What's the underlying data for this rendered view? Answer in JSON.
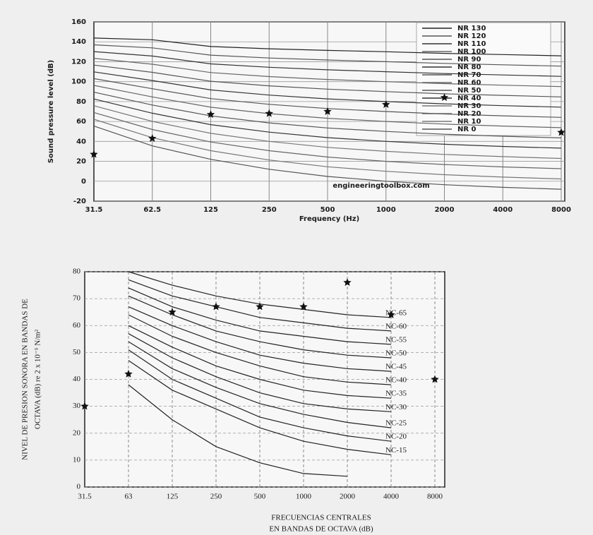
{
  "chart_data": [
    {
      "type": "line",
      "y_label": "Sound pressure level (dB)",
      "x_label": "Frequency (Hz)",
      "annotation": "engineeringtoolbox.com",
      "categories": [
        "31.5",
        "62.5",
        "125",
        "250",
        "500",
        "1000",
        "2000",
        "4000",
        "8000"
      ],
      "ylim": [
        -20,
        160
      ],
      "yticks": [
        -20,
        0,
        20,
        40,
        60,
        80,
        100,
        120,
        140,
        160
      ],
      "grid": true,
      "legend": "upper right",
      "series": [
        {
          "name": "NR 130",
          "color": "#222222",
          "values": [
            143.8,
            142.1,
            135.3,
            133.0,
            131.4,
            130,
            128.4,
            127.2,
            125.9
          ]
        },
        {
          "name": "NR 120",
          "color": "#555555",
          "values": [
            137.0,
            133.9,
            126.6,
            123.7,
            121.7,
            120,
            118.3,
            116.9,
            115.6
          ]
        },
        {
          "name": "NR 110",
          "color": "#333333",
          "values": [
            130.2,
            125.7,
            117.8,
            114.4,
            111.9,
            110,
            108.1,
            106.7,
            105.3
          ]
        },
        {
          "name": "NR 100",
          "color": "#666666",
          "values": [
            123.4,
            117.5,
            109.1,
            105.1,
            102.2,
            100,
            98.0,
            96.4,
            95.0
          ]
        },
        {
          "name": "NR 90",
          "color": "#555555",
          "values": [
            116.6,
            109.3,
            100.4,
            95.8,
            92.5,
            90,
            87.8,
            86.2,
            84.7
          ]
        },
        {
          "name": "NR 80",
          "color": "#333333",
          "values": [
            109.8,
            101.1,
            91.7,
            86.5,
            82.7,
            80,
            77.7,
            75.9,
            74.4
          ]
        },
        {
          "name": "NR 70",
          "color": "#555555",
          "values": [
            103.0,
            92.9,
            83.0,
            77.2,
            73.0,
            70,
            67.5,
            65.7,
            64.1
          ]
        },
        {
          "name": "NR 60",
          "color": "#666666",
          "values": [
            96.2,
            84.7,
            74.3,
            67.9,
            63.2,
            60,
            57.4,
            55.4,
            53.8
          ]
        },
        {
          "name": "NR 50",
          "color": "#555555",
          "values": [
            89.4,
            76.5,
            65.6,
            58.6,
            53.5,
            50,
            47.2,
            45.2,
            43.5
          ]
        },
        {
          "name": "NR 40",
          "color": "#333333",
          "values": [
            82.6,
            68.3,
            56.8,
            49.3,
            43.8,
            40,
            37.1,
            34.9,
            33.2
          ]
        },
        {
          "name": "NR 30",
          "color": "#777777",
          "values": [
            75.8,
            60.1,
            48.1,
            40.0,
            34.0,
            30,
            26.9,
            24.7,
            22.9
          ]
        },
        {
          "name": "NR 20",
          "color": "#666666",
          "values": [
            69.0,
            51.9,
            39.4,
            30.7,
            24.3,
            20,
            16.8,
            14.4,
            12.6
          ]
        },
        {
          "name": "NR 10",
          "color": "#777777",
          "values": [
            62.2,
            43.7,
            30.7,
            21.3,
            14.5,
            10,
            6.6,
            4.2,
            2.3
          ]
        },
        {
          "name": "NR 0",
          "color": "#555555",
          "values": [
            55.4,
            35.5,
            22.0,
            12.0,
            4.8,
            0,
            -3.5,
            -6.1,
            -8.0
          ]
        },
        {
          "style": "markers",
          "color": "#111111",
          "values": [
            27,
            43,
            67,
            68,
            70,
            77,
            84,
            null,
            49
          ]
        }
      ]
    },
    {
      "type": "line",
      "y_label": [
        "NIVEL DE PRESION SONORA EN BANDAS DE",
        "OCTAVA (dB) re 2 x 10⁻⁵ N/m²"
      ],
      "x_label": [
        "FRECUENCIAS CENTRALES",
        "EN BANDAS DE OCTAVA (dB)"
      ],
      "categories": [
        "31.5",
        "63",
        "125",
        "250",
        "500",
        "1000",
        "2000",
        "4000",
        "8000"
      ],
      "ylim": [
        0,
        80
      ],
      "yticks": [
        0,
        10,
        20,
        30,
        40,
        50,
        60,
        70,
        80
      ],
      "grid": true,
      "legend": "line end",
      "series": [
        {
          "name": "NC-65",
          "color": "#222222",
          "values": [
            null,
            80,
            75,
            71,
            68,
            66,
            64,
            63,
            null
          ]
        },
        {
          "name": "NC-60",
          "color": "#222222",
          "values": [
            null,
            77,
            71,
            67,
            63,
            61,
            59,
            58,
            null
          ]
        },
        {
          "name": "NC-55",
          "color": "#222222",
          "values": [
            null,
            74,
            67,
            62,
            58,
            56,
            54,
            53,
            null
          ]
        },
        {
          "name": "NC-50",
          "color": "#222222",
          "values": [
            null,
            71,
            64,
            58,
            54,
            51,
            49,
            48,
            null
          ]
        },
        {
          "name": "NC-45",
          "color": "#222222",
          "values": [
            null,
            67,
            60,
            54,
            49,
            46,
            44,
            43,
            null
          ]
        },
        {
          "name": "NC-40",
          "color": "#222222",
          "values": [
            null,
            64,
            56,
            50,
            45,
            41,
            39,
            38,
            null
          ]
        },
        {
          "name": "NC-35",
          "color": "#222222",
          "values": [
            null,
            60,
            52,
            45,
            40,
            36,
            34,
            33,
            null
          ]
        },
        {
          "name": "NC-30",
          "color": "#222222",
          "values": [
            null,
            57,
            48,
            41,
            35,
            31,
            29,
            28,
            null
          ]
        },
        {
          "name": "NC-25",
          "color": "#222222",
          "values": [
            null,
            54,
            44,
            37,
            31,
            27,
            24,
            22,
            null
          ]
        },
        {
          "name": "NC-20",
          "color": "#222222",
          "values": [
            null,
            51,
            40,
            33,
            26,
            22,
            19,
            17,
            null
          ]
        },
        {
          "name": "NC-15",
          "color": "#222222",
          "values": [
            null,
            47,
            36,
            29,
            22,
            17,
            14,
            12,
            null
          ]
        },
        {
          "color": "#222222",
          "values": [
            null,
            38,
            25,
            15,
            9,
            5,
            4,
            null,
            null
          ]
        },
        {
          "style": "markers",
          "color": "#111111",
          "values": [
            30,
            42,
            65,
            67,
            67,
            67,
            76,
            64,
            40
          ]
        }
      ]
    }
  ]
}
